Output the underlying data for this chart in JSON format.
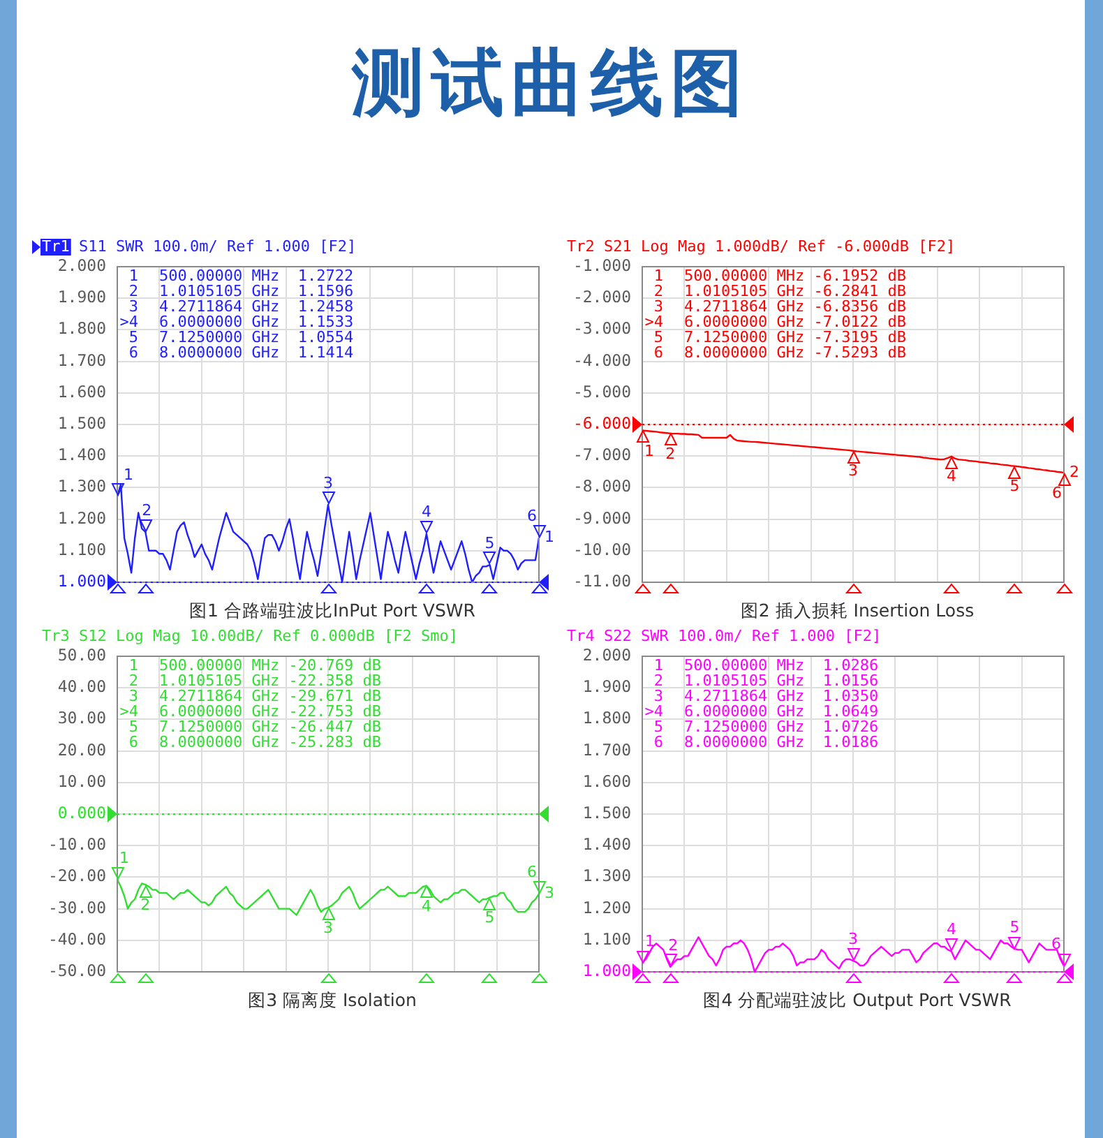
{
  "chart_data": [
    {
      "type": "other",
      "title": "测试曲线图"
    },
    {
      "type": "line",
      "subtitle": "Tr1 S11 SWR 100.0m/ Ref 1.000 [F2]",
      "title": "图1 合路端驻波比InPut Port VSWR",
      "categories": [
        null,
        null,
        null,
        null,
        null,
        null,
        null,
        null,
        null,
        null,
        null,
        null,
        null,
        null,
        null,
        null,
        null,
        null,
        null,
        null,
        null,
        null,
        null,
        null,
        null,
        null,
        null,
        null,
        null,
        null,
        null,
        null,
        null,
        null,
        null,
        null,
        null,
        null,
        null,
        null,
        null,
        null,
        null,
        null,
        null,
        null,
        null,
        null,
        null,
        null,
        null,
        null,
        null,
        null,
        null,
        null,
        null,
        null,
        null,
        null,
        null,
        null,
        null,
        null,
        null,
        null,
        null,
        null,
        null,
        null,
        null,
        null,
        null,
        null,
        null,
        null,
        null,
        null,
        null,
        null,
        null,
        null,
        null,
        null,
        null,
        null,
        null,
        null,
        null,
        null,
        null,
        null,
        null,
        null,
        null,
        null,
        null,
        null,
        null,
        null,
        null,
        null,
        null,
        null,
        null,
        null,
        null,
        null,
        null,
        null,
        null,
        null,
        null,
        null,
        null,
        null,
        null,
        null,
        null,
        null,
        null
      ],
      "series": [
        {
          "name": "1",
          "color": "#1f1fff",
          "values": [
            1.2722,
            1.31,
            1.14,
            1.09,
            1.03,
            1.14,
            1.22,
            1.17,
            1.1596,
            1.1,
            1.1,
            1.1,
            1.09,
            1.09,
            1.07,
            1.04,
            1.1,
            1.16,
            1.18,
            1.19,
            1.15,
            1.12,
            1.08,
            1.1,
            1.12,
            1.09,
            1.07,
            1.04,
            1.09,
            1.14,
            1.18,
            1.22,
            1.19,
            1.16,
            1.15,
            1.14,
            1.13,
            1.12,
            1.1,
            1.06,
            1.01,
            1.08,
            1.14,
            1.15,
            1.15,
            1.13,
            1.1,
            1.13,
            1.17,
            1.2,
            1.14,
            1.07,
            1.01,
            1.09,
            1.16,
            1.11,
            1.07,
            1.02,
            1.09,
            1.17,
            1.2458,
            1.18,
            1.12,
            1.06,
            1.0,
            1.08,
            1.16,
            1.09,
            1.01,
            1.07,
            1.12,
            1.17,
            1.22,
            1.15,
            1.08,
            1.01,
            1.09,
            1.16,
            1.12,
            1.07,
            1.03,
            1.1,
            1.16,
            1.11,
            1.06,
            1.01,
            1.06,
            1.1,
            1.1533,
            1.09,
            1.03,
            1.08,
            1.13,
            1.1,
            1.07,
            1.04,
            1.07,
            1.1,
            1.13,
            1.09,
            1.04,
            1.0,
            1.02,
            1.03,
            1.05,
            1.05,
            1.0554,
            1.01,
            1.06,
            1.11,
            1.1,
            1.1,
            1.09,
            1.07,
            1.04,
            1.06,
            1.07,
            1.07,
            1.07,
            1.07,
            1.1414
          ]
        }
      ],
      "ylim": [
        1,
        2
      ],
      "yticks": [
        {
          "value": 1,
          "label": "1.000"
        },
        {
          "value": 1.1,
          "label": "1.100"
        },
        {
          "value": 1.2,
          "label": "1.200"
        },
        {
          "value": 1.3,
          "label": "1.300"
        },
        {
          "value": 1.4,
          "label": "1.400"
        },
        {
          "value": 1.5,
          "label": "1.500"
        },
        {
          "value": 1.6,
          "label": "1.600"
        },
        {
          "value": 1.7,
          "label": "1.700"
        },
        {
          "value": 1.8,
          "label": "1.800"
        },
        {
          "value": 1.9,
          "label": "1.900"
        },
        {
          "value": 2,
          "label": "2.000"
        }
      ],
      "grid": true,
      "tick_labels": "y",
      "ref_lines": [
        {
          "axis": "y",
          "value": 1,
          "color": "#1f1fff",
          "line_style": "dotted"
        }
      ],
      "annotations": [
        "1  500.00000 MHz  1.2722",
        "2  1.0105105 GHz  1.1596",
        "3  4.2711864 GHz  1.2458",
        ">4  6.0000000 GHz  1.1533",
        "5  7.1250000 GHz  1.0554",
        "6  8.0000000 GHz  1.1414",
        {
          "text": "1",
          "y": 1.2722
        },
        {
          "text": "2",
          "y": 1.1596
        },
        {
          "text": "3",
          "y": 1.2458
        },
        {
          "text": "4",
          "y": 1.1533
        },
        {
          "text": "5",
          "y": 1.0554
        },
        {
          "text": "6",
          "y": 1.1414
        }
      ]
    },
    {
      "type": "line",
      "subtitle": "Tr2 S21 Log Mag 1.000dB/ Ref -6.000dB [F2]",
      "title": "图2 插入损耗 Insertion Loss",
      "categories": [
        null,
        null,
        null,
        null,
        null,
        null,
        null,
        null,
        null,
        null,
        null,
        null,
        null,
        null,
        null,
        null,
        null,
        null,
        null,
        null,
        null,
        null,
        null,
        null,
        null,
        null,
        null,
        null,
        null,
        null,
        null,
        null,
        null,
        null,
        null,
        null,
        null,
        null,
        null,
        null,
        null,
        null,
        null,
        null,
        null,
        null,
        null,
        null,
        null,
        null,
        null,
        null,
        null,
        null,
        null,
        null,
        null,
        null,
        null,
        null,
        null,
        null,
        null,
        null,
        null,
        null,
        null,
        null,
        null,
        null,
        null,
        null,
        null,
        null,
        null,
        null,
        null,
        null,
        null,
        null,
        null,
        null,
        null,
        null,
        null,
        null,
        null,
        null,
        null,
        null,
        null,
        null,
        null,
        null,
        null,
        null,
        null,
        null,
        null,
        null,
        null,
        null,
        null,
        null,
        null,
        null,
        null,
        null,
        null,
        null,
        null,
        null,
        null,
        null,
        null,
        null,
        null,
        null,
        null,
        null,
        null
      ],
      "series": [
        {
          "name": "2",
          "color": "#ff0000",
          "values": [
            -6.1952,
            -6.2,
            -6.21,
            -6.22,
            -6.23,
            -6.25,
            -6.26,
            -6.27,
            -6.2841,
            -6.29,
            -6.29,
            -6.3,
            -6.3,
            -6.31,
            -6.31,
            -6.32,
            -6.33,
            -6.42,
            -6.42,
            -6.42,
            -6.42,
            -6.42,
            -6.42,
            -6.42,
            -6.42,
            -6.33,
            -6.45,
            -6.51,
            -6.52,
            -6.53,
            -6.54,
            -6.55,
            -6.55,
            -6.56,
            -6.57,
            -6.58,
            -6.59,
            -6.6,
            -6.61,
            -6.62,
            -6.63,
            -6.64,
            -6.65,
            -6.66,
            -6.67,
            -6.68,
            -6.69,
            -6.7,
            -6.71,
            -6.72,
            -6.73,
            -6.74,
            -6.75,
            -6.76,
            -6.77,
            -6.78,
            -6.79,
            -6.8,
            -6.81,
            -6.82,
            -6.8356,
            -6.85,
            -6.86,
            -6.87,
            -6.88,
            -6.89,
            -6.9,
            -6.91,
            -6.92,
            -6.93,
            -6.94,
            -6.95,
            -6.96,
            -6.97,
            -6.98,
            -6.99,
            -7.0,
            -7.01,
            -7.02,
            -7.03,
            -7.05,
            -7.06,
            -7.08,
            -7.09,
            -7.1,
            -7.11,
            -7.1,
            -7.06,
            -7.0122,
            -7.08,
            -7.11,
            -7.12,
            -7.13,
            -7.15,
            -7.16,
            -7.17,
            -7.19,
            -7.2,
            -7.21,
            -7.23,
            -7.24,
            -7.25,
            -7.27,
            -7.28,
            -7.29,
            -7.31,
            -7.3195,
            -7.33,
            -7.35,
            -7.36,
            -7.38,
            -7.39,
            -7.41,
            -7.42,
            -7.44,
            -7.45,
            -7.47,
            -7.48,
            -7.5,
            -7.51,
            -7.5293
          ]
        }
      ],
      "ylim": [
        -11,
        -1
      ],
      "yticks": [
        {
          "value": -11,
          "label": "-11.00"
        },
        {
          "value": -10,
          "label": "-10.00"
        },
        {
          "value": -9,
          "label": "-9.000"
        },
        {
          "value": -8,
          "label": "-8.000"
        },
        {
          "value": -7,
          "label": "-7.000"
        },
        {
          "value": -6,
          "label": "-6.000"
        },
        {
          "value": -5,
          "label": "-5.000"
        },
        {
          "value": -4,
          "label": "-4.000"
        },
        {
          "value": -3,
          "label": "-3.000"
        },
        {
          "value": -2,
          "label": "-2.000"
        },
        {
          "value": -1,
          "label": "-1.000"
        }
      ],
      "grid": true,
      "tick_labels": "y",
      "ref_lines": [
        {
          "axis": "y",
          "value": -6,
          "color": "#ff0000",
          "line_style": "dotted"
        }
      ],
      "annotations": [
        "1  500.00000 MHz -6.1952 dB",
        "2  1.0105105 GHz -6.2841 dB",
        "3  4.2711864 GHz -6.8356 dB",
        ">4  6.0000000 GHz -7.0122 dB",
        "5  7.1250000 GHz -7.3195 dB",
        "6  8.0000000 GHz -7.5293 dB",
        {
          "text": "1",
          "y": -6.1952
        },
        {
          "text": "2",
          "y": -6.2841
        },
        {
          "text": "3",
          "y": -6.8356
        },
        {
          "text": "4",
          "y": -7.0122
        },
        {
          "text": "5",
          "y": -7.3195
        },
        {
          "text": "6",
          "y": -7.5293
        }
      ]
    },
    {
      "type": "line",
      "subtitle": "Tr3 S12 Log Mag 10.00dB/ Ref 0.000dB [F2 Smo]",
      "title": "图3 隔离度 Isolation",
      "categories": [
        null,
        null,
        null,
        null,
        null,
        null,
        null,
        null,
        null,
        null,
        null,
        null,
        null,
        null,
        null,
        null,
        null,
        null,
        null,
        null,
        null,
        null,
        null,
        null,
        null,
        null,
        null,
        null,
        null,
        null,
        null,
        null,
        null,
        null,
        null,
        null,
        null,
        null,
        null,
        null,
        null,
        null,
        null,
        null,
        null,
        null,
        null,
        null,
        null,
        null,
        null,
        null,
        null,
        null,
        null,
        null,
        null,
        null,
        null,
        null,
        null,
        null,
        null,
        null,
        null,
        null,
        null,
        null,
        null,
        null,
        null,
        null,
        null,
        null,
        null,
        null,
        null,
        null,
        null,
        null,
        null,
        null,
        null,
        null,
        null,
        null,
        null,
        null,
        null,
        null,
        null,
        null,
        null,
        null,
        null,
        null,
        null,
        null,
        null,
        null,
        null,
        null,
        null,
        null,
        null,
        null,
        null,
        null,
        null,
        null,
        null,
        null,
        null,
        null,
        null,
        null,
        null,
        null,
        null,
        null,
        null
      ],
      "series": [
        {
          "name": "3",
          "color": "#33dd33",
          "values": [
            -20.769,
            -23,
            -26,
            -30,
            -28,
            -27,
            -24,
            -22,
            -22.358,
            -23,
            -24,
            -24,
            -25,
            -25,
            -25,
            -26,
            -27,
            -26,
            -25,
            -25,
            -24,
            -25,
            -26,
            -27,
            -28,
            -28,
            -29,
            -28,
            -26,
            -25,
            -24,
            -23,
            -25,
            -26,
            -28,
            -29,
            -30,
            -30,
            -29,
            -28,
            -27,
            -26,
            -25,
            -24,
            -26,
            -28,
            -30,
            -30,
            -30,
            -30,
            -31,
            -32,
            -30,
            -28,
            -26,
            -24,
            -26,
            -29,
            -31,
            -30,
            -29.671,
            -29,
            -28,
            -27,
            -25,
            -24,
            -23,
            -25,
            -28,
            -30,
            -29,
            -28,
            -27,
            -26,
            -25,
            -24,
            -24,
            -23,
            -24,
            -25,
            -26,
            -26,
            -26,
            -25,
            -25,
            -25,
            -24,
            -23,
            -22.753,
            -24,
            -26,
            -27,
            -28,
            -27,
            -27,
            -26,
            -25,
            -25,
            -24,
            -24,
            -25,
            -26,
            -27,
            -28,
            -27,
            -27,
            -26.447,
            -26,
            -26,
            -25,
            -25,
            -27,
            -28,
            -30,
            -31,
            -31,
            -31,
            -30,
            -28,
            -27,
            -25.283
          ]
        }
      ],
      "ylim": [
        -50,
        50
      ],
      "yticks": [
        {
          "value": -50,
          "label": "-50.00"
        },
        {
          "value": -40,
          "label": "-40.00"
        },
        {
          "value": -30,
          "label": "-30.00"
        },
        {
          "value": -20,
          "label": "-20.00"
        },
        {
          "value": -10,
          "label": "-10.00"
        },
        {
          "value": 0,
          "label": "0.000"
        },
        {
          "value": 10,
          "label": "10.00"
        },
        {
          "value": 20,
          "label": "20.00"
        },
        {
          "value": 30,
          "label": "30.00"
        },
        {
          "value": 40,
          "label": "40.00"
        },
        {
          "value": 50,
          "label": "50.00"
        }
      ],
      "grid": true,
      "tick_labels": "y",
      "ref_lines": [
        {
          "axis": "y",
          "value": 0,
          "color": "#33dd33",
          "line_style": "dotted"
        }
      ],
      "annotations": [
        "1  500.00000 MHz -20.769 dB",
        "2  1.0105105 GHz -22.358 dB",
        "3  4.2711864 GHz -29.671 dB",
        ">4  6.0000000 GHz -22.753 dB",
        "5  7.1250000 GHz -26.447 dB",
        "6  8.0000000 GHz -25.283 dB",
        {
          "text": "1",
          "y": -20.769
        },
        {
          "text": "2",
          "y": -22.358
        },
        {
          "text": "3",
          "y": -29.671
        },
        {
          "text": "4",
          "y": -22.753
        },
        {
          "text": "5",
          "y": -26.447
        },
        {
          "text": "6",
          "y": -25.283
        }
      ]
    },
    {
      "type": "line",
      "subtitle": "Tr4 S22 SWR 100.0m/ Ref 1.000 [F2]",
      "title": "图4 分配端驻波比 Output Port VSWR",
      "categories": [
        null,
        null,
        null,
        null,
        null,
        null,
        null,
        null,
        null,
        null,
        null,
        null,
        null,
        null,
        null,
        null,
        null,
        null,
        null,
        null,
        null,
        null,
        null,
        null,
        null,
        null,
        null,
        null,
        null,
        null,
        null,
        null,
        null,
        null,
        null,
        null,
        null,
        null,
        null,
        null,
        null,
        null,
        null,
        null,
        null,
        null,
        null,
        null,
        null,
        null,
        null,
        null,
        null,
        null,
        null,
        null,
        null,
        null,
        null,
        null,
        null,
        null,
        null,
        null,
        null,
        null,
        null,
        null,
        null,
        null,
        null,
        null,
        null,
        null,
        null,
        null,
        null,
        null,
        null,
        null,
        null,
        null,
        null,
        null,
        null,
        null,
        null,
        null,
        null,
        null,
        null,
        null,
        null,
        null,
        null,
        null,
        null,
        null,
        null,
        null,
        null,
        null,
        null,
        null,
        null,
        null,
        null,
        null,
        null,
        null,
        null,
        null,
        null,
        null,
        null,
        null,
        null,
        null,
        null,
        null,
        null
      ],
      "series": [
        {
          "color": "#ff00ff",
          "values": [
            1.0286,
            1.04,
            1.06,
            1.08,
            1.09,
            1.08,
            1.07,
            1.04,
            1.0156,
            1.03,
            1.04,
            1.04,
            1.05,
            1.05,
            1.07,
            1.09,
            1.11,
            1.09,
            1.07,
            1.05,
            1.04,
            1.02,
            1.04,
            1.07,
            1.08,
            1.08,
            1.09,
            1.09,
            1.1,
            1.09,
            1.07,
            1.04,
            1.0,
            1.02,
            1.04,
            1.06,
            1.07,
            1.07,
            1.08,
            1.08,
            1.09,
            1.08,
            1.07,
            1.05,
            1.02,
            1.03,
            1.03,
            1.04,
            1.04,
            1.04,
            1.05,
            1.07,
            1.06,
            1.04,
            1.03,
            1.02,
            1.01,
            1.03,
            1.04,
            1.04,
            1.035,
            1.03,
            1.02,
            1.02,
            1.03,
            1.05,
            1.06,
            1.07,
            1.08,
            1.07,
            1.06,
            1.05,
            1.06,
            1.06,
            1.07,
            1.07,
            1.07,
            1.05,
            1.03,
            1.04,
            1.06,
            1.07,
            1.08,
            1.09,
            1.09,
            1.08,
            1.08,
            1.07,
            1.0649,
            1.04,
            1.06,
            1.08,
            1.1,
            1.09,
            1.08,
            1.07,
            1.07,
            1.06,
            1.05,
            1.04,
            1.06,
            1.08,
            1.1,
            1.09,
            1.09,
            1.08,
            1.0726,
            1.07,
            1.07,
            1.05,
            1.03,
            1.05,
            1.07,
            1.09,
            1.08,
            1.07,
            1.07,
            1.07,
            1.07,
            1.04,
            1.0186
          ]
        }
      ],
      "ylim": [
        1,
        2
      ],
      "yticks": [
        {
          "value": 1,
          "label": "1.000"
        },
        {
          "value": 1.1,
          "label": "1.100"
        },
        {
          "value": 1.2,
          "label": "1.200"
        },
        {
          "value": 1.3,
          "label": "1.300"
        },
        {
          "value": 1.4,
          "label": "1.400"
        },
        {
          "value": 1.5,
          "label": "1.500"
        },
        {
          "value": 1.6,
          "label": "1.600"
        },
        {
          "value": 1.7,
          "label": "1.700"
        },
        {
          "value": 1.8,
          "label": "1.800"
        },
        {
          "value": 1.9,
          "label": "1.900"
        },
        {
          "value": 2,
          "label": "2.000"
        }
      ],
      "grid": true,
      "tick_labels": "y",
      "ref_lines": [
        {
          "axis": "y",
          "value": 1,
          "color": "#ff00ff",
          "line_style": "dotted"
        }
      ],
      "annotations": [
        "1  500.00000 MHz  1.0286",
        "2  1.0105105 GHz  1.0156",
        "3  4.2711864 GHz  1.0350",
        ">4  6.0000000 GHz  1.0649",
        "5  7.1250000 GHz  1.0726",
        "6  8.0000000 GHz  1.0186",
        {
          "text": "1",
          "y": 1.0286
        },
        {
          "text": "2",
          "y": 1.0156
        },
        {
          "text": "3",
          "y": 1.035
        },
        {
          "text": "4",
          "y": 1.0649
        },
        {
          "text": "5",
          "y": 1.0726
        },
        {
          "text": "6",
          "y": 1.0186
        }
      ]
    }
  ]
}
